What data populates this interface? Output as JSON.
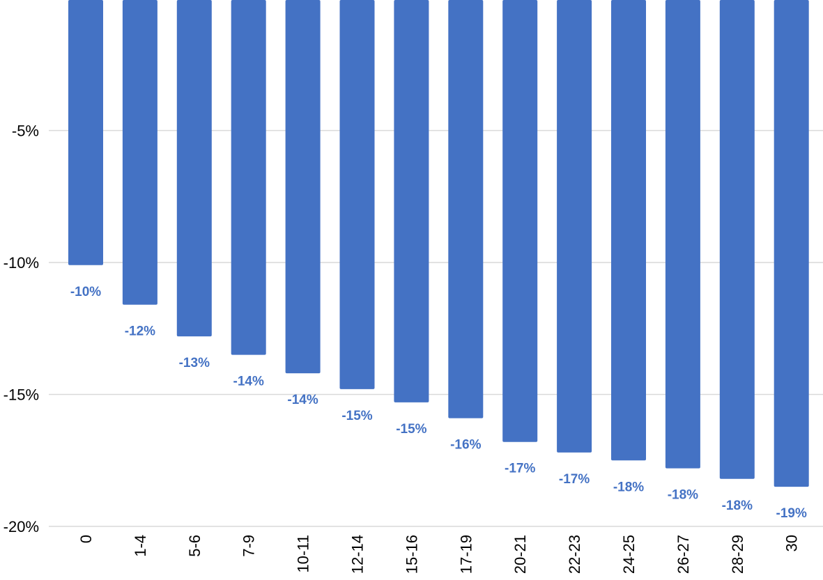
{
  "chart_data": {
    "type": "bar",
    "categories": [
      "0",
      "1-4",
      "5-6",
      "7-9",
      "10-11",
      "12-14",
      "15-16",
      "17-19",
      "20-21",
      "22-23",
      "24-25",
      "26-27",
      "28-29",
      "30"
    ],
    "values": [
      -10.1,
      -11.6,
      -12.8,
      -13.5,
      -14.2,
      -14.8,
      -15.3,
      -15.9,
      -16.8,
      -17.2,
      -17.5,
      -17.8,
      -18.2,
      -18.5
    ],
    "data_labels": [
      "-10%",
      "-12%",
      "-13%",
      "-14%",
      "-14%",
      "-15%",
      "-15%",
      "-16%",
      "-17%",
      "-17%",
      "-18%",
      "-18%",
      "-18%",
      "-19%"
    ],
    "ylim": [
      -20,
      0
    ],
    "yticks": [
      -5,
      -10,
      -15,
      -20
    ],
    "ytick_labels": [
      "-5%",
      "-10%",
      "-15%",
      "-20%"
    ],
    "grid": true,
    "bar_color": "#4472C4",
    "label_color": "#4472C4",
    "grid_color": "#D9D9D9"
  }
}
